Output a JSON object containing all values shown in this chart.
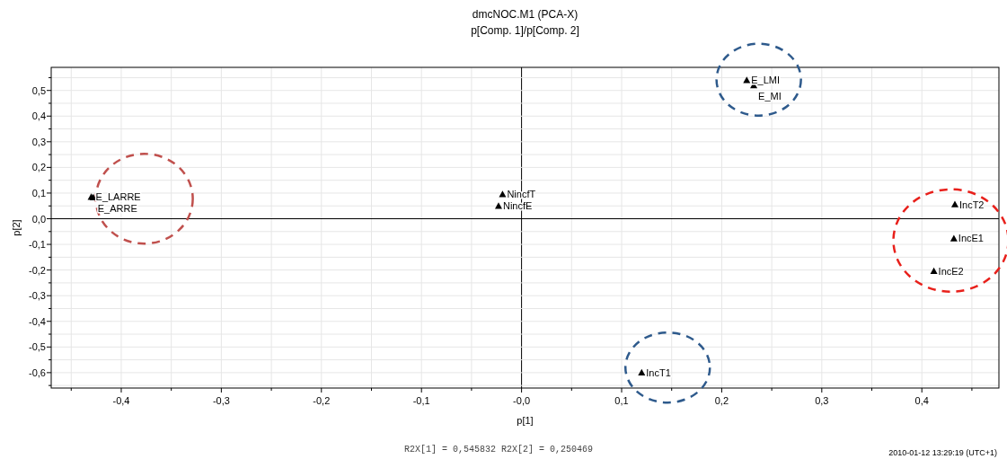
{
  "chart_data": {
    "type": "scatter",
    "title": "dmcNOC.M1 (PCA-X)",
    "subtitle": "p[Comp. 1]/p[Comp. 2]",
    "xlabel": "p[1]",
    "ylabel": "p[2]",
    "x": [
      -0.43,
      -0.428,
      -0.019,
      -0.023,
      0.225,
      0.232,
      0.433,
      0.432,
      0.412,
      0.12
    ],
    "series": [
      {
        "color": "#000000",
        "values": [
          0.085,
          0.083,
          0.095,
          0.05,
          0.54,
          0.52,
          0.056,
          -0.077,
          -0.204,
          -0.6
        ]
      }
    ],
    "marker": "triangle",
    "grid": true,
    "xlim": [
      -0.47,
      0.477
    ],
    "ylim": [
      -0.66,
      0.59
    ],
    "xticks": [
      {
        "value": -0.45,
        "label": null
      },
      {
        "value": -0.4,
        "label": "-0,4"
      },
      {
        "value": -0.35,
        "label": null
      },
      {
        "value": -0.3,
        "label": "-0,3"
      },
      {
        "value": -0.25,
        "label": null
      },
      {
        "value": -0.2,
        "label": "-0,2"
      },
      {
        "value": -0.15,
        "label": null
      },
      {
        "value": -0.1,
        "label": "-0,1"
      },
      {
        "value": -0.05,
        "label": null
      },
      {
        "value": 0,
        "label": "-0,0"
      },
      {
        "value": 0.05,
        "label": null
      },
      {
        "value": 0.1,
        "label": "0,1"
      },
      {
        "value": 0.15,
        "label": null
      },
      {
        "value": 0.2,
        "label": "0,2"
      },
      {
        "value": 0.25,
        "label": null
      },
      {
        "value": 0.3,
        "label": "0,3"
      },
      {
        "value": 0.35,
        "label": null
      },
      {
        "value": 0.4,
        "label": "0,4"
      },
      {
        "value": 0.45,
        "label": null
      }
    ],
    "yticks": [
      {
        "value": -0.65,
        "label": null
      },
      {
        "value": -0.6,
        "label": "-0,6"
      },
      {
        "value": -0.55,
        "label": null
      },
      {
        "value": -0.5,
        "label": "-0,5"
      },
      {
        "value": -0.45,
        "label": null
      },
      {
        "value": -0.4,
        "label": "-0,4"
      },
      {
        "value": -0.35,
        "label": null
      },
      {
        "value": -0.3,
        "label": "-0,3"
      },
      {
        "value": -0.25,
        "label": null
      },
      {
        "value": -0.2,
        "label": "-0,2"
      },
      {
        "value": -0.15,
        "label": null
      },
      {
        "value": -0.1,
        "label": "-0,1"
      },
      {
        "value": -0.05,
        "label": null
      },
      {
        "value": 0,
        "label": "0,0"
      },
      {
        "value": 0.05,
        "label": null
      },
      {
        "value": 0.1,
        "label": "0,1"
      },
      {
        "value": 0.15,
        "label": null
      },
      {
        "value": 0.2,
        "label": "0,2"
      },
      {
        "value": 0.25,
        "label": null
      },
      {
        "value": 0.3,
        "label": "0,3"
      },
      {
        "value": 0.35,
        "label": null
      },
      {
        "value": 0.4,
        "label": "0,4"
      },
      {
        "value": 0.45,
        "label": null
      },
      {
        "value": 0.5,
        "label": "0,5"
      },
      {
        "value": 0.55,
        "label": null
      }
    ],
    "annotations": [
      {
        "text": "E_LARRE",
        "x": -0.43,
        "y": 0.085
      },
      {
        "text": "E_ARRE",
        "x": -0.428,
        "y": 0.083
      },
      {
        "text": "NincfT",
        "x": -0.019,
        "y": 0.095
      },
      {
        "text": "NincfE",
        "x": -0.023,
        "y": 0.05
      },
      {
        "text": "E_LMI",
        "x": 0.225,
        "y": 0.54
      },
      {
        "text": "E_MI",
        "x": 0.232,
        "y": 0.52
      },
      {
        "text": "IncT2",
        "x": 0.433,
        "y": 0.056
      },
      {
        "text": "IncE1",
        "x": 0.432,
        "y": -0.077
      },
      {
        "text": "IncE2",
        "x": 0.412,
        "y": -0.204
      },
      {
        "text": "IncT1",
        "x": 0.12,
        "y": -0.6
      },
      "R2X[1] = 0,545832 R2X[2] = 0,250469",
      "2010-01-12 13:29:19 (UTC+1)"
    ]
  }
}
